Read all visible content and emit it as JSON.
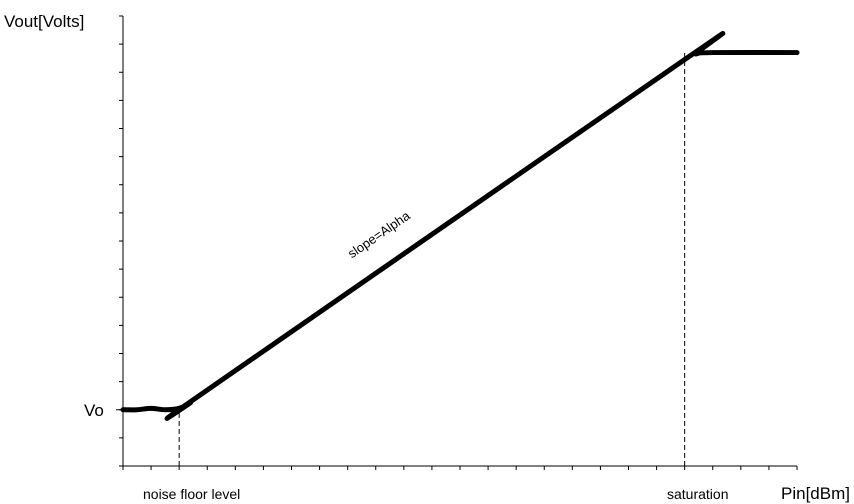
{
  "chart_data": {
    "type": "line",
    "title": "",
    "xlabel": "Pin[dBm]",
    "ylabel": "Vout[Volts]",
    "xlim": [
      0,
      24
    ],
    "ylim": [
      0,
      16
    ],
    "x_tick_count": 24,
    "y_tick_count": 16,
    "grid": false,
    "y_ticks": [
      {
        "label": "Vo",
        "value": 2
      }
    ],
    "x_ticks": [
      {
        "label": "noise floor level",
        "value": 2
      },
      {
        "label": "saturation",
        "value": 20
      }
    ],
    "series": [
      {
        "name": "",
        "color": "#000000",
        "x": [
          0,
          0.5,
          1.0,
          1.5,
          2.0,
          2.4,
          3.0,
          20.0,
          20.4,
          21.0,
          24.0
        ],
        "y": [
          2.0,
          2.0,
          2.05,
          2.0,
          2.05,
          2.25,
          2.7,
          14.45,
          14.65,
          14.7,
          14.7
        ]
      }
    ],
    "reference_lines": [
      {
        "x": 2,
        "y_from": 0,
        "y_to": 2
      },
      {
        "x": 20,
        "y_from": 0,
        "y_to": 14.7
      }
    ],
    "annotations": [
      {
        "text": "slope=Alpha",
        "x": 9.2,
        "y": 8.1
      }
    ]
  }
}
